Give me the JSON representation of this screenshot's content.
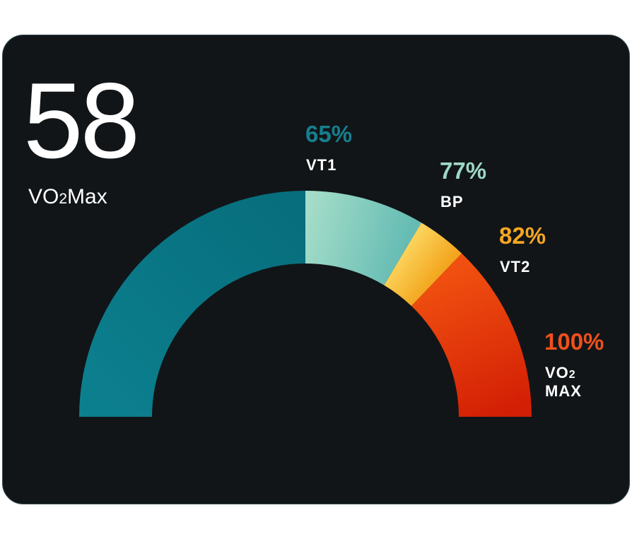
{
  "metric": {
    "value": "58",
    "label_main": "VO",
    "label_sub": "2",
    "label_rest": "Max"
  },
  "chart_data": {
    "type": "gauge",
    "range": [
      0,
      100
    ],
    "segments": [
      {
        "from": 0,
        "to": 65,
        "color": "#0c7f8e",
        "color_end": "#076e7d"
      },
      {
        "from": 65,
        "to": 77,
        "color": "#a3dcc8",
        "color_end": "#66bcb4"
      },
      {
        "from": 77,
        "to": 82,
        "color": "#fbd25a",
        "color_end": "#f3a51d"
      },
      {
        "from": 82,
        "to": 100,
        "color": "#f04f10",
        "color_end": "#d31f05"
      }
    ],
    "thresholds": [
      {
        "pct": "65%",
        "name": "VT1",
        "color": "#167f8e"
      },
      {
        "pct": "77%",
        "name": "BP",
        "color": "#9ed8c4"
      },
      {
        "pct": "82%",
        "name": "VT2",
        "color": "#f5a623"
      },
      {
        "pct": "100%",
        "name_main": "VO",
        "name_sub": "2",
        "name_line2": "MAX",
        "color": "#f0501a"
      }
    ]
  }
}
